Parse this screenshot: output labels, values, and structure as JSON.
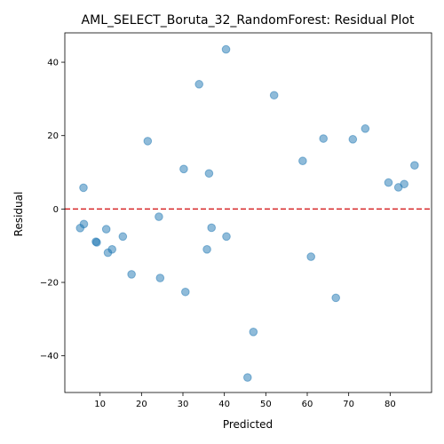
{
  "chart_data": {
    "type": "scatter",
    "title": "AML_SELECT_Boruta_32_RandomForest: Residual Plot",
    "xlabel": "Predicted",
    "ylabel": "Residual",
    "xlim": [
      1.5,
      90
    ],
    "ylim": [
      -50,
      48
    ],
    "xticks": [
      10,
      20,
      30,
      40,
      50,
      60,
      70,
      80
    ],
    "yticks": [
      -40,
      -20,
      0,
      20,
      40
    ],
    "grid": false,
    "point_color": "#1f77b4",
    "reference_line": {
      "y": 0,
      "color": "#d62728",
      "style": "dashed"
    },
    "points": [
      {
        "x": 40.4,
        "y": 43.5
      },
      {
        "x": 33.9,
        "y": 34.0
      },
      {
        "x": 52.0,
        "y": 31.0
      },
      {
        "x": 74.0,
        "y": 21.9
      },
      {
        "x": 63.9,
        "y": 19.2
      },
      {
        "x": 71.0,
        "y": 19.0
      },
      {
        "x": 21.5,
        "y": 18.5
      },
      {
        "x": 58.9,
        "y": 13.1
      },
      {
        "x": 85.9,
        "y": 11.9
      },
      {
        "x": 30.2,
        "y": 10.9
      },
      {
        "x": 36.3,
        "y": 9.7
      },
      {
        "x": 79.6,
        "y": 7.2
      },
      {
        "x": 83.4,
        "y": 6.8
      },
      {
        "x": 82.0,
        "y": 5.9
      },
      {
        "x": 6.0,
        "y": 5.8
      },
      {
        "x": 24.2,
        "y": -2.1
      },
      {
        "x": 6.1,
        "y": -4.1
      },
      {
        "x": 5.2,
        "y": -5.2
      },
      {
        "x": 36.9,
        "y": -5.1
      },
      {
        "x": 11.5,
        "y": -5.5
      },
      {
        "x": 15.5,
        "y": -7.5
      },
      {
        "x": 40.5,
        "y": -7.5
      },
      {
        "x": 9.0,
        "y": -8.9
      },
      {
        "x": 9.2,
        "y": -9.1
      },
      {
        "x": 35.8,
        "y": -11.0
      },
      {
        "x": 12.9,
        "y": -11.0
      },
      {
        "x": 11.9,
        "y": -11.9
      },
      {
        "x": 60.9,
        "y": -13.0
      },
      {
        "x": 17.6,
        "y": -17.8
      },
      {
        "x": 24.5,
        "y": -18.8
      },
      {
        "x": 30.6,
        "y": -22.6
      },
      {
        "x": 66.9,
        "y": -24.2
      },
      {
        "x": 47.0,
        "y": -33.5
      },
      {
        "x": 45.6,
        "y": -45.9
      }
    ]
  }
}
